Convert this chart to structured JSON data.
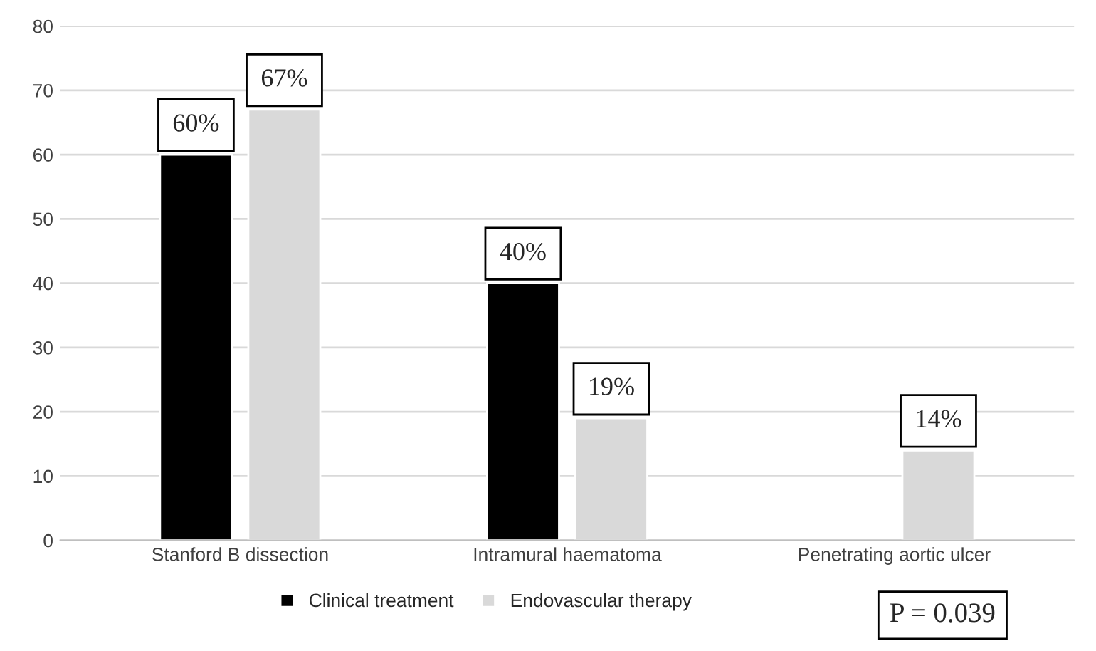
{
  "chart_data": {
    "type": "bar",
    "categories": [
      "Stanford B dissection",
      "Intramural haematoma",
      "Penetrating aortic ulcer"
    ],
    "series": [
      {
        "name": "Clinical treatment",
        "color": "#000000",
        "values": [
          60,
          40,
          null
        ],
        "value_labels": [
          "60%",
          "40%",
          null
        ]
      },
      {
        "name": "Endovascular therapy",
        "color": "#d9d9d9",
        "values": [
          67,
          19,
          14
        ],
        "value_labels": [
          "67%",
          "19%",
          "14%"
        ]
      }
    ],
    "ylim": [
      0,
      80
    ],
    "yticks": [
      0,
      10,
      20,
      30,
      40,
      50,
      60,
      70,
      80
    ],
    "grid": "y",
    "legend": "bottom",
    "annotations": [
      "P = 0.039"
    ]
  }
}
